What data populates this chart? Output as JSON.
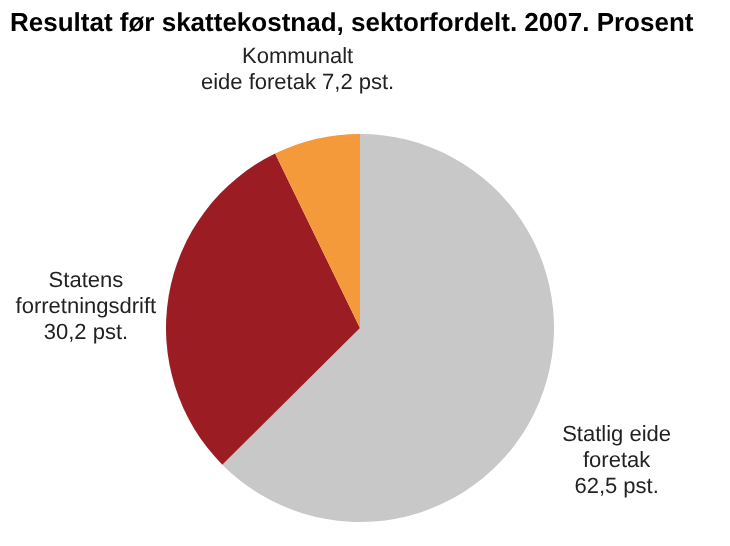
{
  "chart_data": {
    "type": "pie",
    "title": "Resultat før skattekostnad, sektorfordelt. 2007. Prosent",
    "categories": [
      "Statlig eide foretak",
      "Statens forretningsdrift",
      "Kommunalt eide foretak"
    ],
    "values": [
      62.5,
      30.2,
      7.2
    ],
    "value_labels": [
      "62,5 pst.",
      "30,2 pst.",
      "7,2 pst."
    ],
    "colors": [
      "#c8c8c8",
      "#9c1c24",
      "#f49a3a"
    ],
    "legend": false
  }
}
